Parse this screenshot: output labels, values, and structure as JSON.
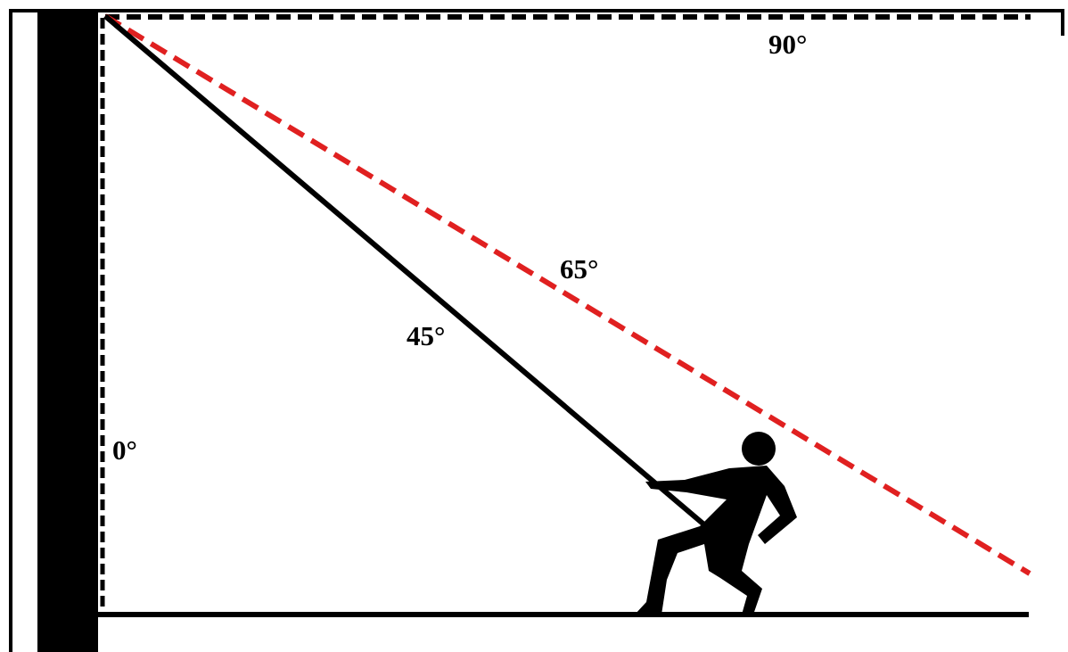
{
  "labels": {
    "horizontal": "90°",
    "steep": "65°",
    "rope": "45°",
    "vertical": "0°"
  }
}
